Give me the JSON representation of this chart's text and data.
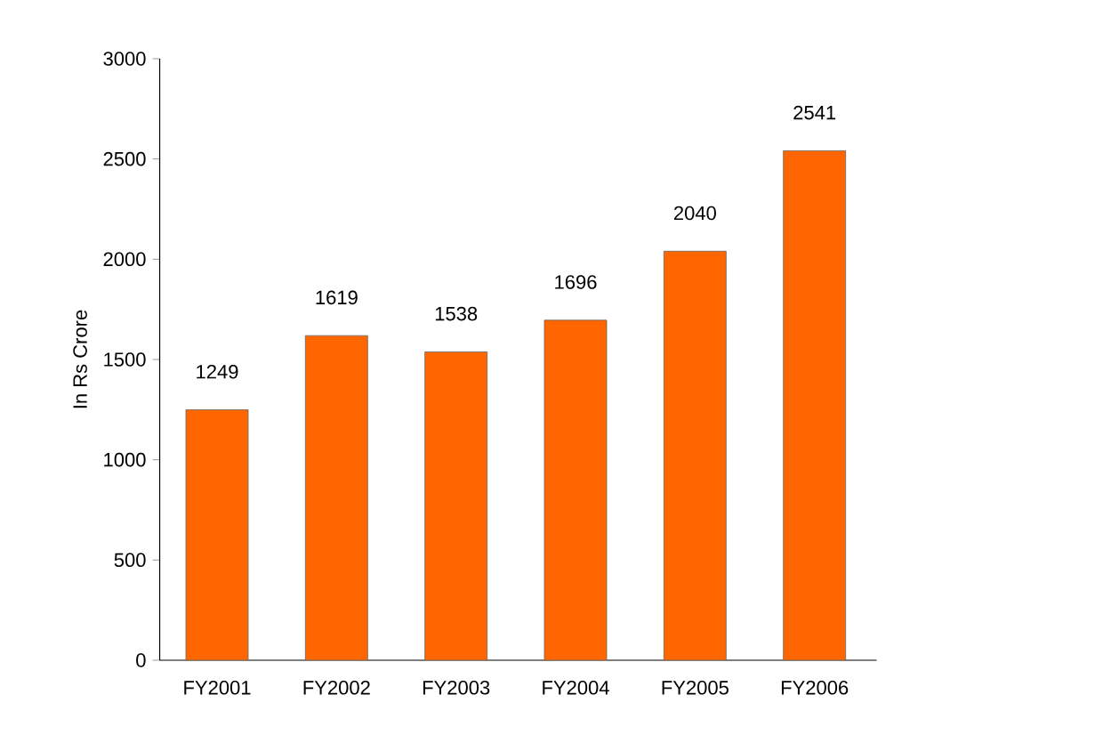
{
  "chart_data": {
    "type": "bar",
    "ylabel": "In Rs Crore",
    "categories": [
      "FY2001",
      "FY2002",
      "FY2003",
      "FY2004",
      "FY2005",
      "FY2006"
    ],
    "values": [
      1249,
      1619,
      1538,
      1696,
      2040,
      2541
    ],
    "color": "#ff6600",
    "data_labels": true,
    "ylim": [
      0,
      3000
    ],
    "yticks": [
      0,
      500,
      1000,
      1500,
      2000,
      2500,
      3000
    ],
    "grid": false,
    "legend": false
  }
}
